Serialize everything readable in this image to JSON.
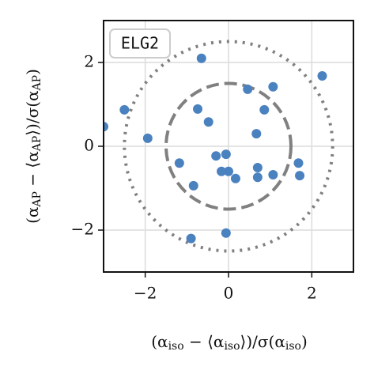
{
  "chart_data": {
    "type": "scatter",
    "annotation": "ELG2",
    "xlabel": "(α_iso − ⟨α_iso⟩)/σ(α_iso)",
    "ylabel": "(α_AP − ⟨α_AP⟩)/σ(α_AP)",
    "xlim": [
      -3,
      3
    ],
    "ylim": [
      -3,
      3
    ],
    "xticks": [
      {
        "value": -2,
        "label": "−2"
      },
      0,
      2
    ],
    "yticks": [
      {
        "value": -2,
        "label": "−2"
      },
      0,
      2
    ],
    "grid": true,
    "color": "#4a81bf",
    "circles": [
      {
        "radius": 1.5,
        "style": "dashed"
      },
      {
        "radius": 2.5,
        "style": "dotted"
      }
    ],
    "x": [
      -3.0,
      -2.5,
      -1.94,
      -0.65,
      -0.74,
      -0.48,
      -1.18,
      -0.84,
      -0.9,
      -0.3,
      -0.06,
      -0.17,
      0.0,
      0.17,
      -0.06,
      0.46,
      1.07,
      0.86,
      0.67,
      0.7,
      0.7,
      1.07,
      1.68,
      1.71,
      2.25
    ],
    "values": [
      0.47,
      0.87,
      0.19,
      2.1,
      0.89,
      0.58,
      -0.4,
      -0.94,
      -2.2,
      -0.23,
      -0.19,
      -0.6,
      -0.6,
      -0.77,
      -2.07,
      1.36,
      1.42,
      0.87,
      0.3,
      -0.51,
      -0.74,
      -0.68,
      -0.4,
      -0.7,
      1.68
    ]
  }
}
